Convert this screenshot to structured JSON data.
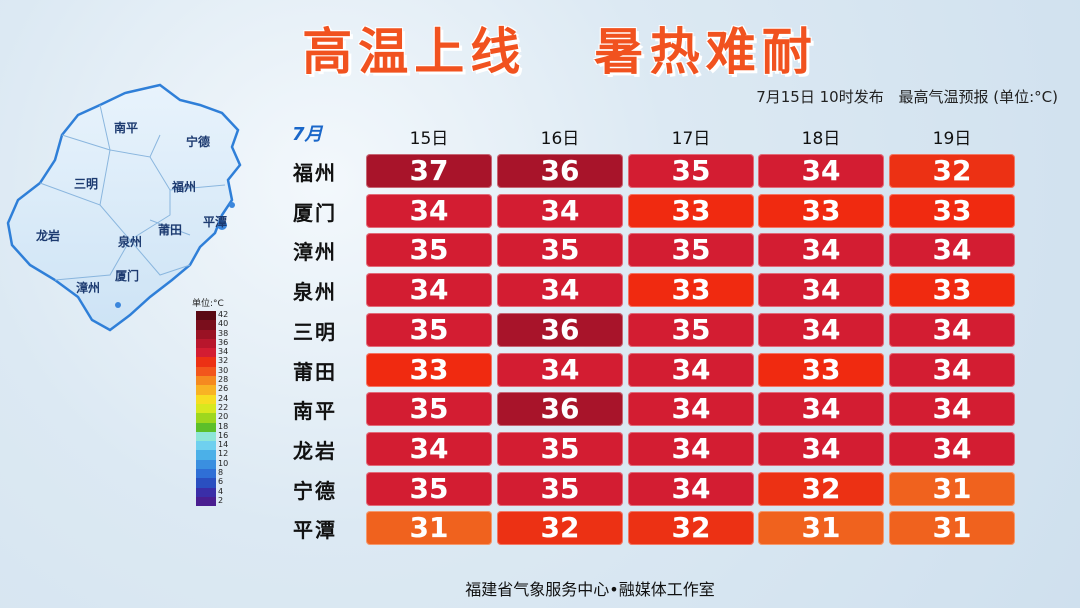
{
  "title_left": "高温上线",
  "title_right": "暑热难耐",
  "issue_time": "7月15日 10时发布",
  "product": "最高气温预报 (单位:°C)",
  "month": "7月",
  "days": [
    "15日",
    "16日",
    "17日",
    "18日",
    "19日"
  ],
  "cities": [
    {
      "name": "福州",
      "temps": [
        "37",
        "36",
        "35",
        "34",
        "32"
      ]
    },
    {
      "name": "厦门",
      "temps": [
        "34",
        "34",
        "33",
        "33",
        "33"
      ]
    },
    {
      "name": "漳州",
      "temps": [
        "35",
        "35",
        "35",
        "34",
        "34"
      ]
    },
    {
      "name": "泉州",
      "temps": [
        "34",
        "34",
        "33",
        "34",
        "33"
      ]
    },
    {
      "name": "三明",
      "temps": [
        "35",
        "36",
        "35",
        "34",
        "34"
      ]
    },
    {
      "name": "莆田",
      "temps": [
        "33",
        "34",
        "34",
        "33",
        "34"
      ]
    },
    {
      "name": "南平",
      "temps": [
        "35",
        "36",
        "34",
        "34",
        "34"
      ]
    },
    {
      "name": "龙岩",
      "temps": [
        "34",
        "35",
        "34",
        "34",
        "34"
      ]
    },
    {
      "name": "宁德",
      "temps": [
        "35",
        "35",
        "34",
        "32",
        "31"
      ]
    },
    {
      "name": "平潭",
      "temps": [
        "31",
        "32",
        "32",
        "31",
        "31"
      ]
    }
  ],
  "temp_colors": {
    "31": "#f0621e",
    "32": "#ec3114",
    "33": "#f02a10",
    "34": "#d31d32",
    "35": "#d31d32",
    "36": "#a8142a",
    "37": "#a8142a"
  },
  "map_labels": {
    "nanping": "南平",
    "ningde": "宁德",
    "sanming": "三明",
    "fuzhou": "福州",
    "longyan": "龙岩",
    "quanzhou": "泉州",
    "putian": "莆田",
    "pingtan": "平潭",
    "zhangzhou": "漳州",
    "xiamen": "厦门"
  },
  "legend_title": "单位:°C",
  "legend": [
    {
      "v": "42",
      "c": "#5a0a14"
    },
    {
      "v": "40",
      "c": "#7a0e1c"
    },
    {
      "v": "38",
      "c": "#9a1224"
    },
    {
      "v": "36",
      "c": "#b8162c"
    },
    {
      "v": "34",
      "c": "#d31d32"
    },
    {
      "v": "32",
      "c": "#ec3114"
    },
    {
      "v": "30",
      "c": "#f2561c"
    },
    {
      "v": "28",
      "c": "#f58a20"
    },
    {
      "v": "26",
      "c": "#f8b324"
    },
    {
      "v": "24",
      "c": "#f7dd22"
    },
    {
      "v": "22",
      "c": "#d8e81f"
    },
    {
      "v": "20",
      "c": "#9ed71e"
    },
    {
      "v": "18",
      "c": "#5cbf2a"
    },
    {
      "v": "16",
      "c": "#8ee6d8"
    },
    {
      "v": "14",
      "c": "#6fd0ef"
    },
    {
      "v": "12",
      "c": "#4bb0e8"
    },
    {
      "v": "10",
      "c": "#3a8fe0"
    },
    {
      "v": "8",
      "c": "#2f6fd6"
    },
    {
      "v": "6",
      "c": "#2a4fc0"
    },
    {
      "v": "4",
      "c": "#3a2ea8"
    },
    {
      "v": "2",
      "c": "#4a1e90"
    }
  ],
  "footer": "福建省气象服务中心•融媒体工作室"
}
